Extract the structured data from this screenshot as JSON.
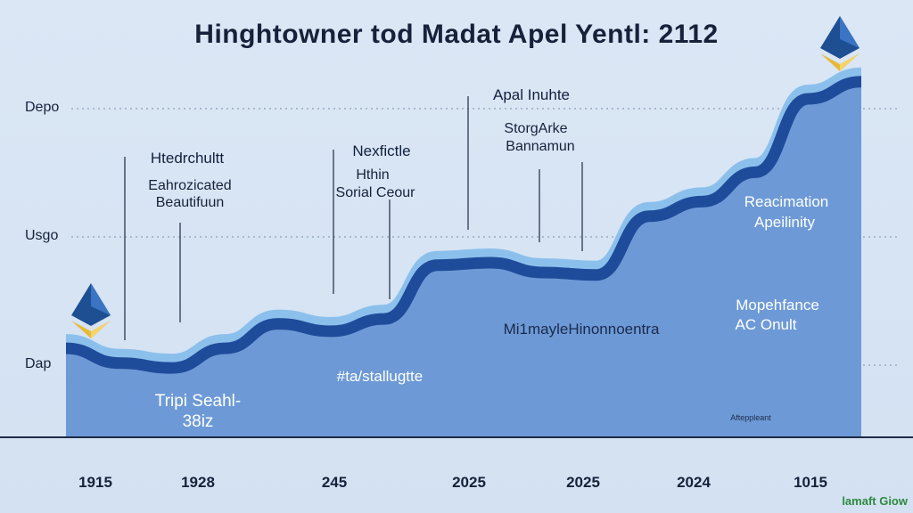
{
  "title": "Hinghtowner tod Madat Apel Yentl: 2112",
  "y_labels": [
    "Depo",
    "Usgo",
    "Dap"
  ],
  "x_labels": [
    "1915",
    "1928",
    "245",
    "2025",
    "2025",
    "2024",
    "1015"
  ],
  "annotations": [
    "Htedrchultt",
    "Eahrozicated",
    "Beautifuun",
    "Nexfictle",
    "Hthin",
    "Sorial Ceour",
    "Apal Inuhte",
    "StorgArke",
    "Bannamun",
    "Reacimation",
    "Apeilinity",
    "Mopehfance",
    "AC Onult",
    "Mi1mayleHinonnoentra",
    "#ta/stallugtte",
    "Tripi Seahl-",
    "38iz",
    "Afteppleant"
  ],
  "watermark": "lamaft Giow",
  "icons": [
    "ethereum-icon",
    "ethereum-icon"
  ],
  "colors": {
    "background": "#dbe7f5",
    "area_fill": "#6d9ad6",
    "line_dark": "#1f4c9a",
    "line_glow": "#8cc0ec",
    "text": "#16223a"
  },
  "chart_data": {
    "type": "area",
    "title": "Hinghtowner tod Madat Apel Yentl: 2112",
    "x_tick_labels": [
      "1915",
      "1928",
      "245",
      "2025",
      "2025",
      "2024",
      "1015"
    ],
    "y_tick_labels": [
      "Depo",
      "Usgo",
      "Dap"
    ],
    "grid": true,
    "series": [
      {
        "values": [
          36,
          30,
          28,
          36,
          46,
          43,
          48,
          70,
          71,
          67,
          66,
          90,
          96,
          108,
          138,
          145
        ]
      }
    ],
    "ylim": [
      0,
      150
    ]
  }
}
